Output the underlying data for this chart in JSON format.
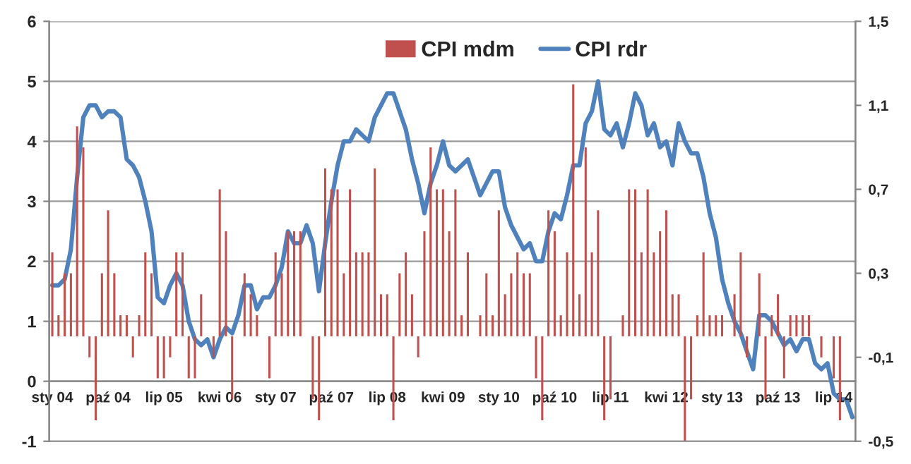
{
  "chart_data": {
    "type": "bar",
    "categories": [
      "sty 04",
      null,
      null,
      null,
      null,
      null,
      null,
      null,
      null,
      "paź 04",
      null,
      null,
      null,
      null,
      null,
      null,
      null,
      null,
      "lip 05",
      null,
      null,
      null,
      null,
      null,
      null,
      null,
      null,
      "kwi 06",
      null,
      null,
      null,
      null,
      null,
      null,
      null,
      null,
      "sty 07",
      null,
      null,
      null,
      null,
      null,
      null,
      null,
      null,
      "paź 07",
      null,
      null,
      null,
      null,
      null,
      null,
      null,
      null,
      "lip 08",
      null,
      null,
      null,
      null,
      null,
      null,
      null,
      null,
      "kwi 09",
      null,
      null,
      null,
      null,
      null,
      null,
      null,
      null,
      "sty 10",
      null,
      null,
      null,
      null,
      null,
      null,
      null,
      null,
      "paź 10",
      null,
      null,
      null,
      null,
      null,
      null,
      null,
      null,
      "lip 11",
      null,
      null,
      null,
      null,
      null,
      null,
      null,
      null,
      "kwi 12",
      null,
      null,
      null,
      null,
      null,
      null,
      null,
      null,
      "sty 13",
      null,
      null,
      null,
      null,
      null,
      null,
      null,
      null,
      "paź 13",
      null,
      null,
      null,
      null,
      null,
      null,
      null,
      null,
      "lip 14",
      null,
      null,
      null
    ],
    "series": [
      {
        "name": "CPI mdm",
        "axis": "y2",
        "color": "#c0504d",
        "values": [
          0.4,
          0.1,
          0.3,
          0.3,
          1.0,
          0.9,
          -0.1,
          -0.4,
          0.3,
          0.6,
          0.3,
          0.1,
          0.1,
          -0.1,
          0.1,
          0.4,
          0.3,
          -0.2,
          -0.2,
          -0.1,
          0.4,
          0.4,
          -0.2,
          -0.2,
          0.2,
          0,
          -0.1,
          0.7,
          0.5,
          -0.3,
          0,
          0.3,
          0.2,
          0.1,
          0,
          -0.2,
          0.4,
          0.3,
          0.5,
          0.5,
          0.5,
          0,
          -0.3,
          -0.4,
          0.8,
          0.7,
          0.7,
          0.3,
          0.7,
          0.4,
          0.4,
          0.4,
          0.8,
          0.2,
          0.2,
          -0.4,
          0.3,
          0.4,
          0.2,
          -0.1,
          0.5,
          0.9,
          0.7,
          0.7,
          0.5,
          0.7,
          0.1,
          0.4,
          0,
          0.1,
          0.3,
          0.1,
          0.6,
          0.2,
          0.3,
          0.4,
          0.3,
          0.3,
          -0.2,
          -0.4,
          0.6,
          0.5,
          0.1,
          0.4,
          1.2,
          0.2,
          0.9,
          0.4,
          0.6,
          -0.4,
          -0.3,
          0,
          0.1,
          0.7,
          0.7,
          0.4,
          0.7,
          0.4,
          0.5,
          0.6,
          0.2,
          0.2,
          -0.5,
          -0.3,
          0.1,
          0.4,
          0.1,
          0.1,
          0.1,
          0,
          0.2,
          0.4,
          -0.1,
          0,
          0.3,
          -0.3,
          0.1,
          0.2,
          -0.2,
          0.1,
          0.1,
          0.1,
          0.1,
          0,
          -0.1,
          0,
          -0.2,
          -0.4,
          0,
          0
        ]
      },
      {
        "name": "CPI rdr",
        "type": "line",
        "color": "#4f81bd",
        "values": [
          1.6,
          1.6,
          1.7,
          2.2,
          3.4,
          4.4,
          4.6,
          4.6,
          4.4,
          4.5,
          4.5,
          4.4,
          3.7,
          3.6,
          3.4,
          3.0,
          2.5,
          1.4,
          1.3,
          1.6,
          1.8,
          1.6,
          1.0,
          0.7,
          0.6,
          0.7,
          0.4,
          0.7,
          0.9,
          0.8,
          1.1,
          1.6,
          1.6,
          1.2,
          1.4,
          1.4,
          1.6,
          1.9,
          2.5,
          2.3,
          2.3,
          2.6,
          2.3,
          1.5,
          2.3,
          3.0,
          3.6,
          4.0,
          4.0,
          4.2,
          4.1,
          4.0,
          4.4,
          4.6,
          4.8,
          4.8,
          4.5,
          4.2,
          3.7,
          3.3,
          2.8,
          3.3,
          3.6,
          4.0,
          3.6,
          3.5,
          3.6,
          3.7,
          3.4,
          3.1,
          3.3,
          3.5,
          3.5,
          2.9,
          2.6,
          2.4,
          2.2,
          2.3,
          2.0,
          2.0,
          2.5,
          2.8,
          2.7,
          3.1,
          3.6,
          3.6,
          4.3,
          4.5,
          5.0,
          4.2,
          4.1,
          4.3,
          3.9,
          4.3,
          4.8,
          4.6,
          4.1,
          4.3,
          3.9,
          4.0,
          3.6,
          4.3,
          4.0,
          3.8,
          3.8,
          3.4,
          2.8,
          2.4,
          1.7,
          1.3,
          1.0,
          0.8,
          0.5,
          0.2,
          1.1,
          1.1,
          1.0,
          0.8,
          0.6,
          0.7,
          0.5,
          0.7,
          0.7,
          0.3,
          0.2,
          0.3,
          -0.2,
          -0.3,
          -0.3,
          -0.6
        ]
      }
    ],
    "ylim": [
      -1,
      6
    ],
    "yticks": [
      -1,
      0,
      1,
      2,
      3,
      4,
      5,
      6
    ],
    "y2lim": [
      -0.5,
      1.5
    ],
    "y2ticks": [
      {
        "value": -0.5,
        "label": "-0,5"
      },
      {
        "value": -0.1,
        "label": "-0,1"
      },
      {
        "value": 0.3,
        "label": "0,3"
      },
      {
        "value": 0.7,
        "label": "0,7"
      },
      {
        "value": 1.1,
        "label": "1,1"
      },
      {
        "value": 1.5,
        "label": "1,5"
      }
    ],
    "grid": "y",
    "legend": "top",
    "marker": "none",
    "line_style": "solid"
  }
}
